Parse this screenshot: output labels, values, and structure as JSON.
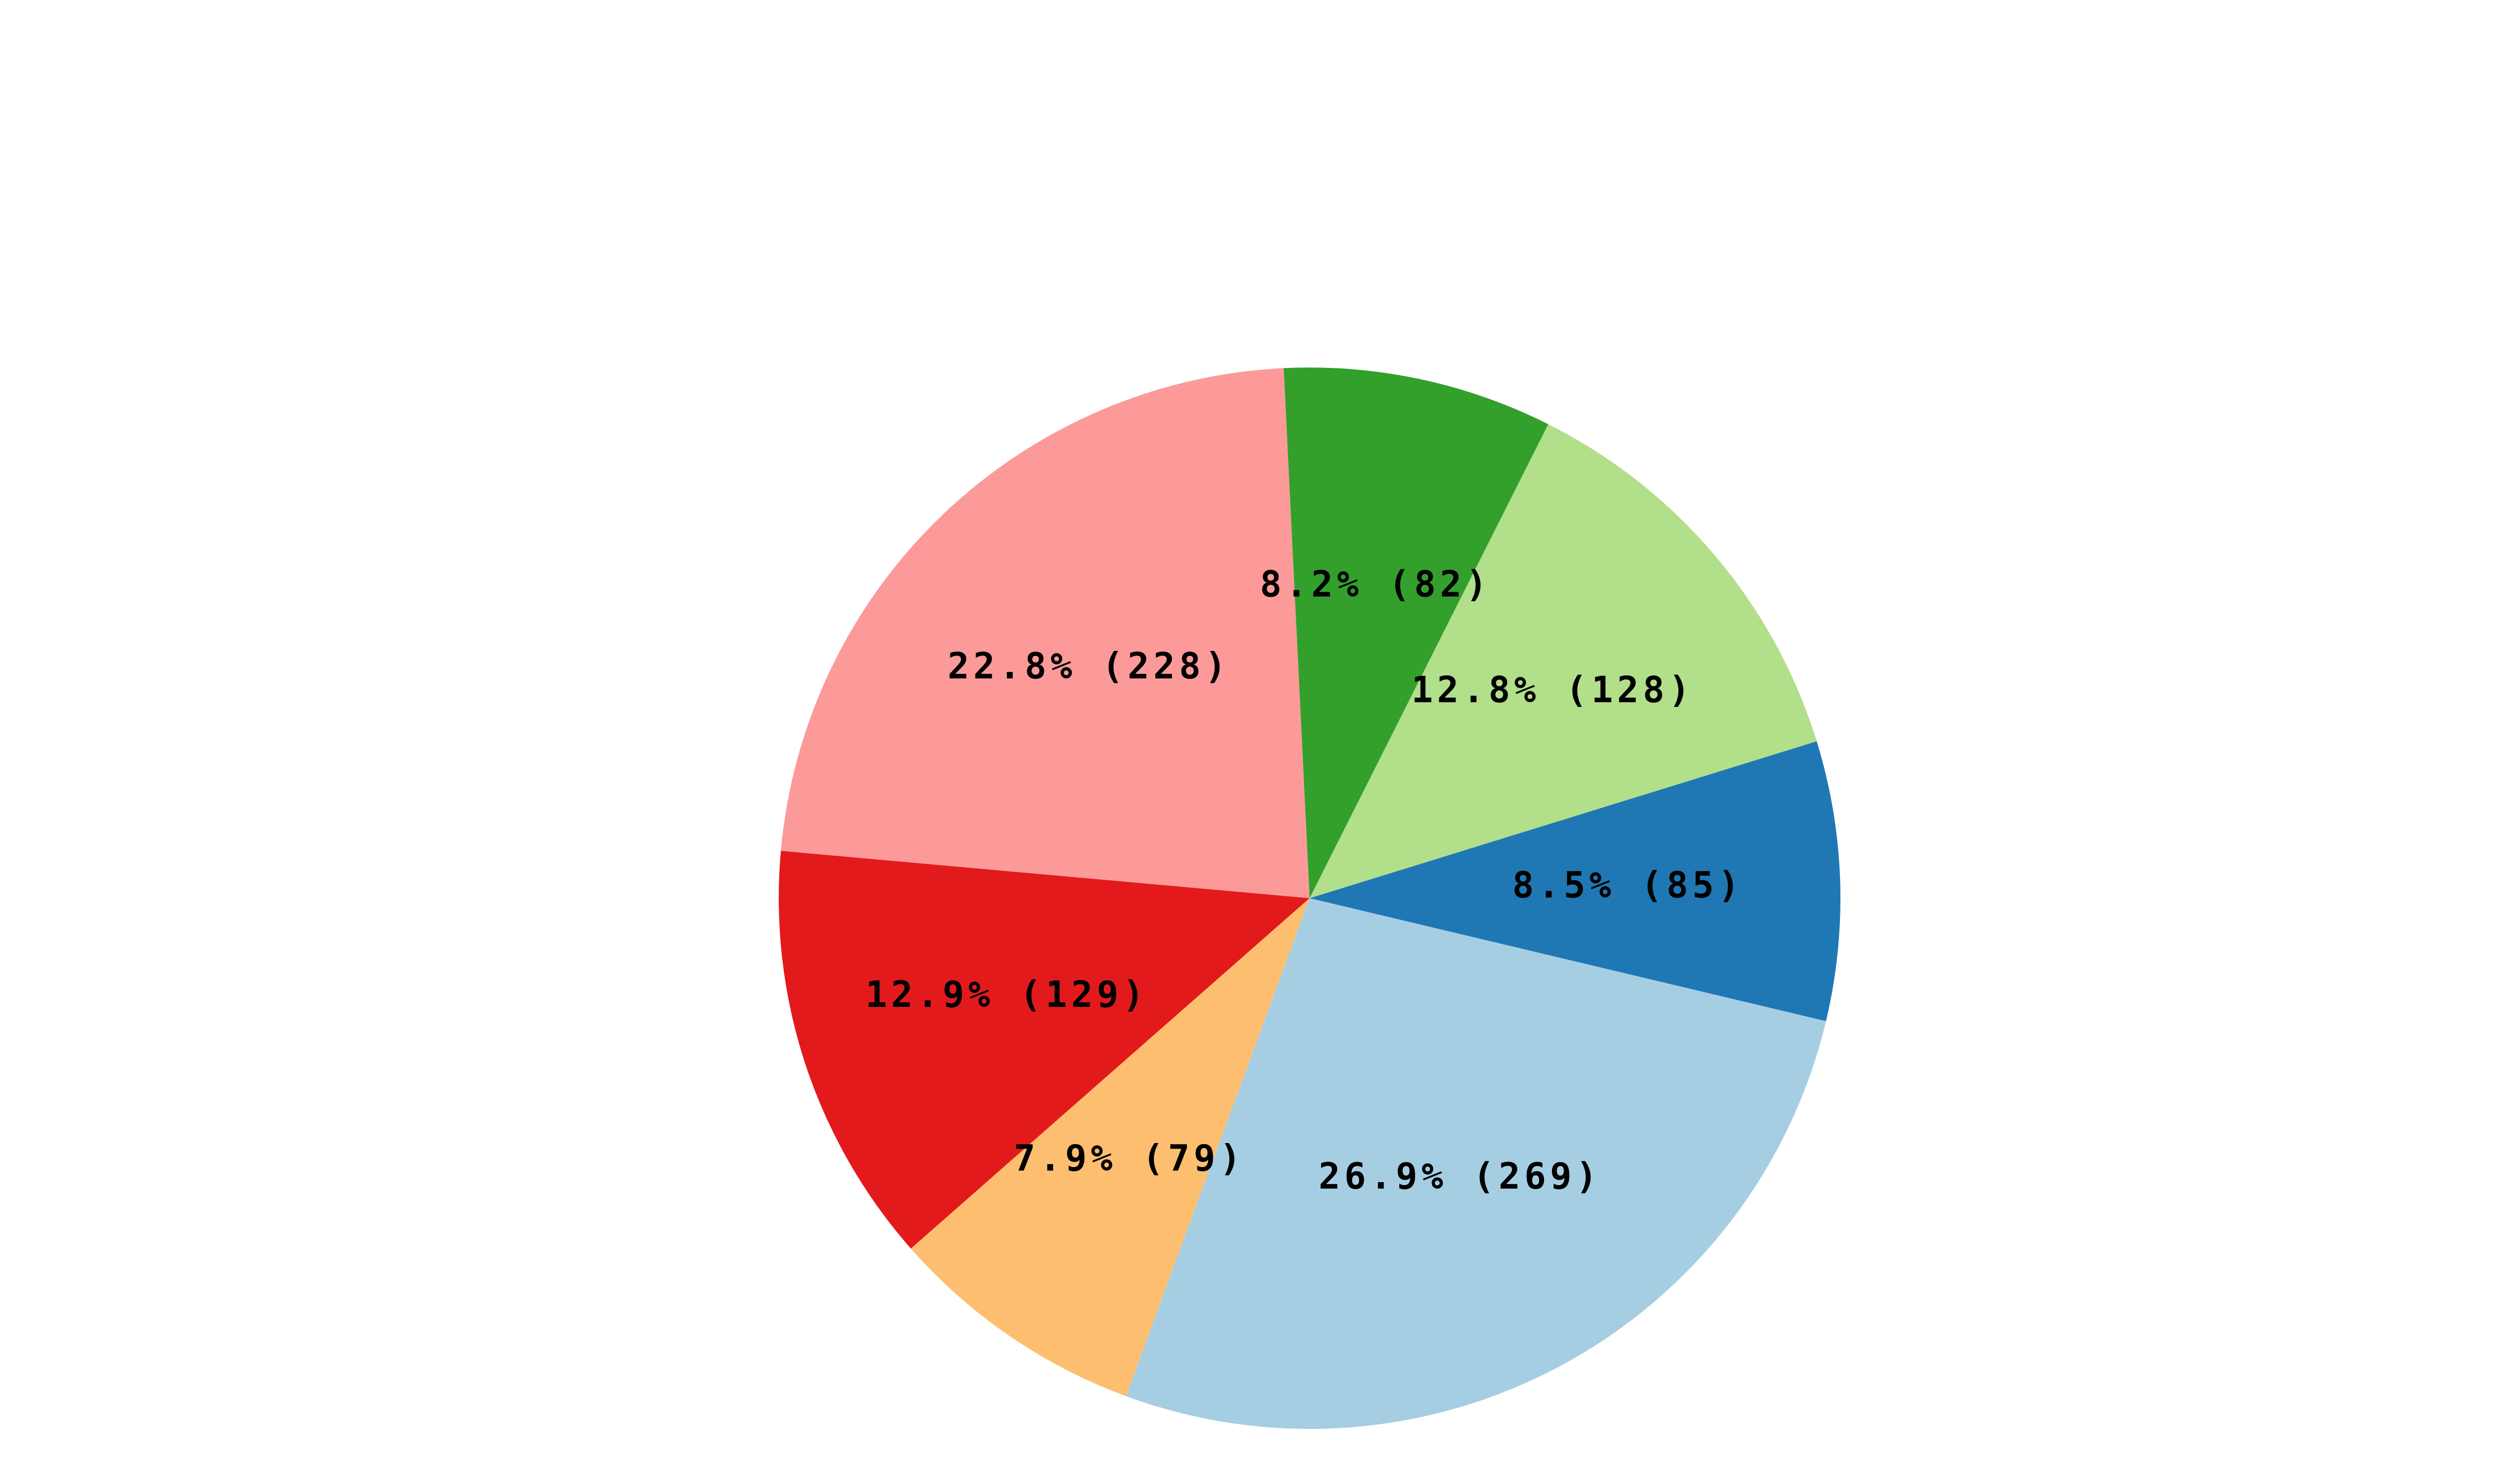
{
  "chart_data": {
    "type": "pie",
    "values": [
      85,
      128,
      82,
      228,
      129,
      79,
      269
    ],
    "value_labels": [
      "8.5% (85)",
      "12.8% (128)",
      "8.2% (82)",
      "22.8% (228)",
      "12.9% (129)",
      "7.9% (79)",
      "26.9% (269)"
    ],
    "colors": [
      "#1f78b4",
      "#b2df8a",
      "#33a02c",
      "#fb9a99",
      "#e31a1c",
      "#fdbf6f",
      "#a6cee3"
    ]
  }
}
